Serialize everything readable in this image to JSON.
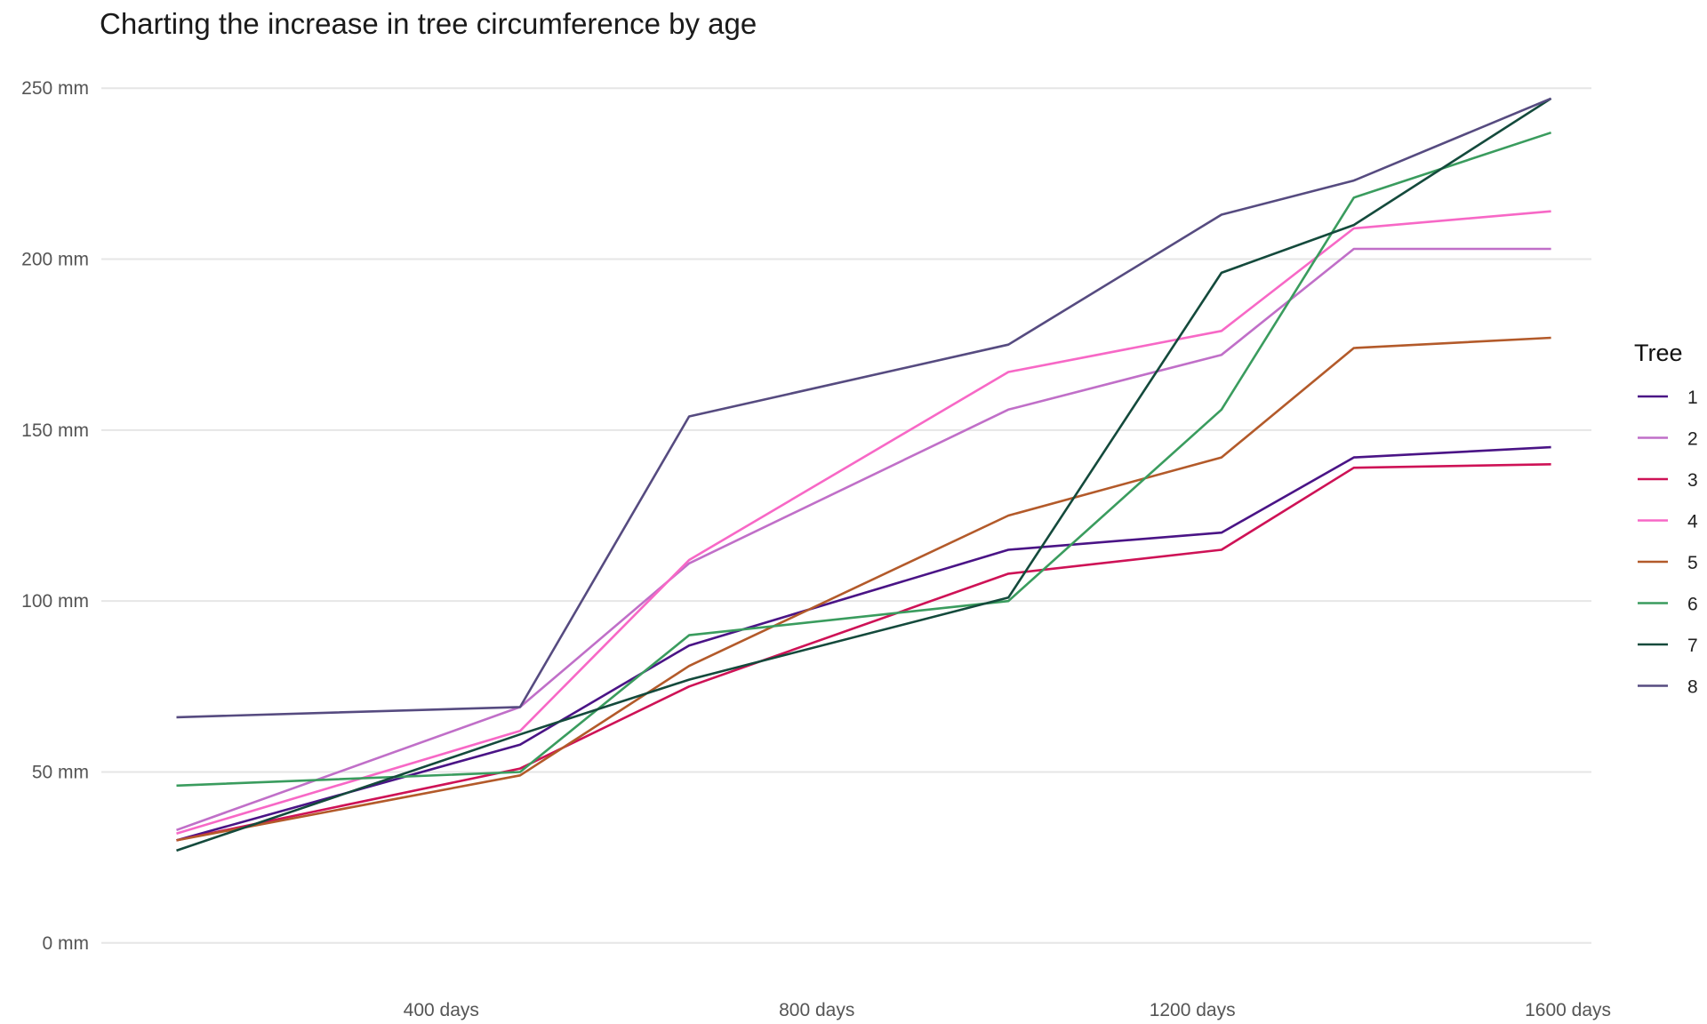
{
  "chart_data": {
    "type": "line",
    "title": "Charting the increase in tree circumference by age",
    "xlabel": "",
    "ylabel": "",
    "x_unit": "days",
    "y_unit": "mm",
    "xlim": [
      38,
      1625
    ],
    "ylim": [
      -5,
      255
    ],
    "x_ticks": [
      400,
      800,
      1200,
      1600
    ],
    "x_tick_labels": [
      "400 days",
      "800 days",
      "1200 days",
      "1600 days"
    ],
    "y_ticks": [
      0,
      50,
      100,
      150,
      200,
      250
    ],
    "y_tick_labels": [
      "0 mm",
      "50 mm",
      "100 mm",
      "150 mm",
      "200 mm",
      "250 mm"
    ],
    "grid": "horizontal",
    "legend": {
      "title": "Tree",
      "position": "right"
    },
    "x": [
      118,
      484,
      664,
      1004,
      1231,
      1372,
      1582
    ],
    "series": [
      {
        "name": "1",
        "color": "#4a1486",
        "values": [
          30,
          58,
          87,
          115,
          120,
          142,
          145
        ]
      },
      {
        "name": "2",
        "color": "#c06fc8",
        "values": [
          33,
          69,
          111,
          156,
          172,
          203,
          203
        ]
      },
      {
        "name": "3",
        "color": "#ce1256",
        "values": [
          30,
          51,
          75,
          108,
          115,
          139,
          140
        ]
      },
      {
        "name": "4",
        "color": "#f768c6",
        "values": [
          32,
          62,
          112,
          167,
          179,
          209,
          214
        ]
      },
      {
        "name": "5",
        "color": "#b35a2a",
        "values": [
          30,
          49,
          81,
          125,
          142,
          174,
          177
        ]
      },
      {
        "name": "6",
        "color": "#3a9c5e",
        "values": [
          46,
          50,
          90,
          100,
          156,
          218,
          237
        ]
      },
      {
        "name": "7",
        "color": "#144a3c",
        "values": [
          27,
          61,
          77,
          101,
          196,
          210,
          247
        ]
      },
      {
        "name": "8",
        "color": "#564b80",
        "values": [
          66,
          69,
          154,
          175,
          213,
          223,
          247
        ]
      }
    ]
  }
}
